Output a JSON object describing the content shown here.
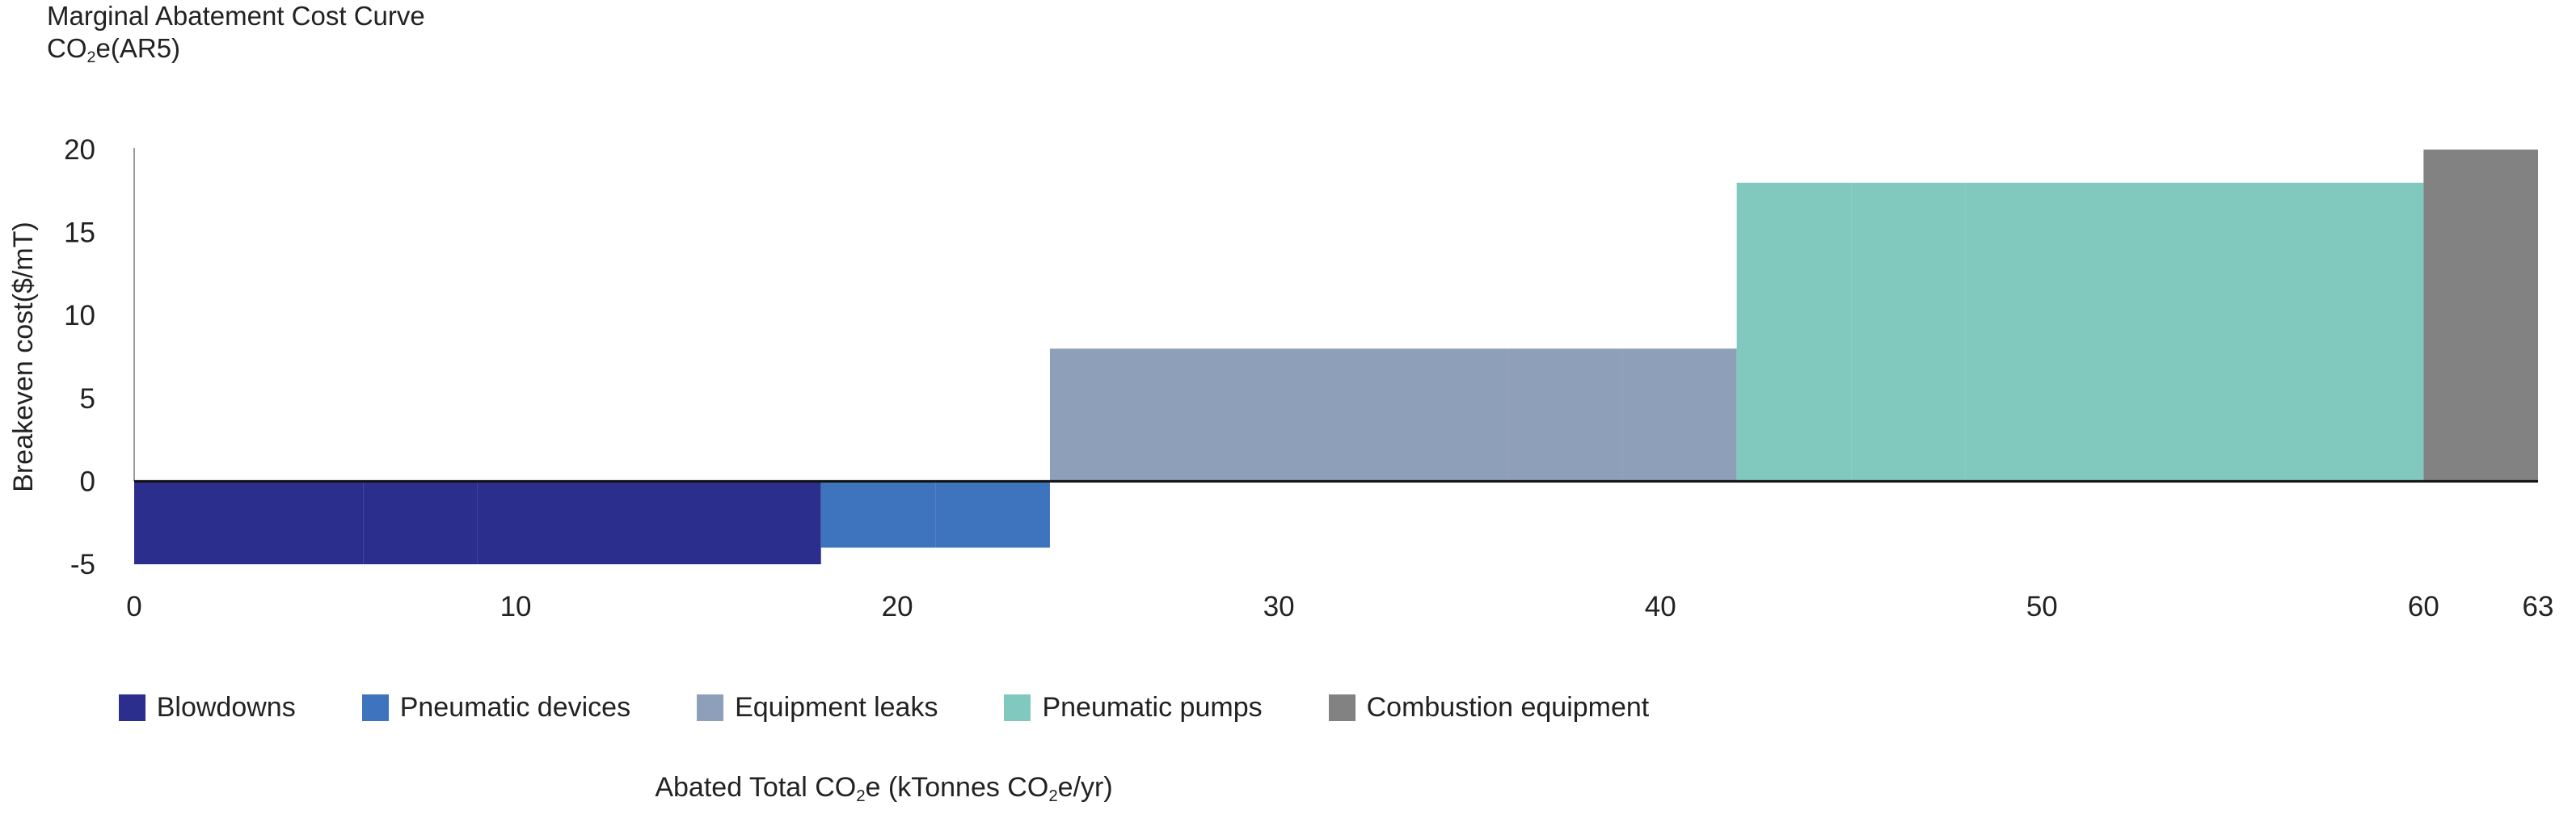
{
  "chart_data": {
    "type": "bar",
    "subtype": "marginal-abatement-cost-curve",
    "title": "Marginal Abatement Cost Curve",
    "subtitle_main": "CO",
    "subtitle_sub": "2",
    "subtitle_tail": "e(AR5)",
    "ylabel": "Breakeven cost($/mT)",
    "xlabel_parts": [
      "Abated Total CO",
      "2",
      "e (kTonnes CO",
      "2",
      "e/yr)"
    ],
    "ylim": [
      -5,
      20
    ],
    "xlim": [
      0,
      63
    ],
    "yticks": [
      -5,
      0,
      5,
      10,
      15,
      20
    ],
    "xticks": [
      0,
      10,
      20,
      30,
      40,
      50,
      60,
      63
    ],
    "categories": [
      {
        "name": "Blowdowns",
        "color": "#2b2e8c"
      },
      {
        "name": "Pneumatic devices",
        "color": "#3d74bd"
      },
      {
        "name": "Equipment leaks",
        "color": "#8e9fba"
      },
      {
        "name": "Pneumatic pumps",
        "color": "#81c8bf"
      },
      {
        "name": "Combustion equipment",
        "color": "#828282"
      }
    ],
    "segments": [
      {
        "category": "Blowdowns",
        "x0": 0,
        "x1": 6,
        "value": -5
      },
      {
        "category": "Blowdowns",
        "x0": 6,
        "x1": 9,
        "value": -5
      },
      {
        "category": "Blowdowns",
        "x0": 9,
        "x1": 18,
        "value": -5
      },
      {
        "category": "Pneumatic devices",
        "x0": 18,
        "x1": 21,
        "value": -4
      },
      {
        "category": "Pneumatic devices",
        "x0": 21,
        "x1": 24,
        "value": -4
      },
      {
        "category": "Equipment leaks",
        "x0": 24,
        "x1": 36,
        "value": 8
      },
      {
        "category": "Equipment leaks",
        "x0": 36,
        "x1": 39,
        "value": 8
      },
      {
        "category": "Equipment leaks",
        "x0": 39,
        "x1": 42,
        "value": 8
      },
      {
        "category": "Pneumatic pumps",
        "x0": 42,
        "x1": 45,
        "value": 18
      },
      {
        "category": "Pneumatic pumps",
        "x0": 45,
        "x1": 48,
        "value": 18
      },
      {
        "category": "Pneumatic pumps",
        "x0": 48,
        "x1": 51,
        "value": 18
      },
      {
        "category": "Pneumatic pumps",
        "x0": 51,
        "x1": 60,
        "value": 18
      },
      {
        "category": "Combustion equipment",
        "x0": 60,
        "x1": 63,
        "value": 20
      }
    ]
  }
}
